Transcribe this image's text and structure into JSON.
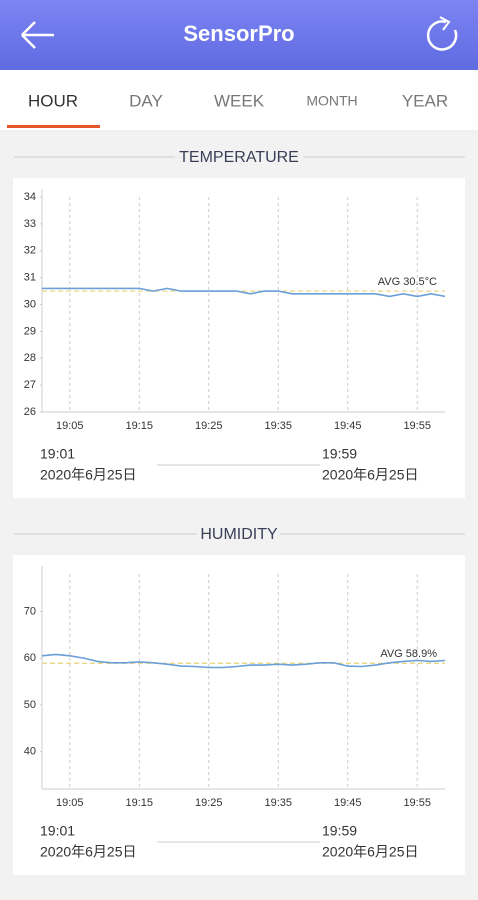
{
  "header": {
    "title": "SensorPro"
  },
  "tabs": [
    "HOUR",
    "DAY",
    "WEEK",
    "MONTH",
    "YEAR"
  ],
  "chart_data": [
    {
      "type": "line",
      "title": "TEMPERATURE",
      "x": [
        "19:01",
        "19:03",
        "19:05",
        "19:07",
        "19:09",
        "19:11",
        "19:13",
        "19:15",
        "19:17",
        "19:19",
        "19:21",
        "19:23",
        "19:25",
        "19:27",
        "19:29",
        "19:31",
        "19:33",
        "19:35",
        "19:37",
        "19:39",
        "19:41",
        "19:43",
        "19:45",
        "19:47",
        "19:49",
        "19:51",
        "19:53",
        "19:55",
        "19:57",
        "19:59"
      ],
      "series": [
        {
          "color": "#6a9fd8",
          "values": [
            30.6,
            30.6,
            30.6,
            30.6,
            30.6,
            30.6,
            30.6,
            30.6,
            30.5,
            30.6,
            30.5,
            30.5,
            30.5,
            30.5,
            30.5,
            30.4,
            30.5,
            30.5,
            30.4,
            30.4,
            30.4,
            30.4,
            30.4,
            30.4,
            30.4,
            30.3,
            30.4,
            30.3,
            30.4,
            30.3
          ]
        }
      ],
      "avg": {
        "value": 30.5,
        "label": "AVG 30.5°C"
      },
      "avg_color": "#e8d27a",
      "xlim": [
        "19:01",
        "19:59"
      ],
      "xticks": [
        "19:05",
        "19:15",
        "19:25",
        "19:35",
        "19:45",
        "19:55"
      ],
      "range_dates": [
        "2020年6月25日",
        "2020年6月25日"
      ],
      "ylim": [
        26,
        34
      ],
      "yticks": [
        26,
        27,
        28,
        29,
        30,
        31,
        32,
        33,
        34
      ],
      "grid": true
    },
    {
      "type": "line",
      "title": "HUMIDITY",
      "x": [
        "19:01",
        "19:03",
        "19:05",
        "19:07",
        "19:09",
        "19:11",
        "19:13",
        "19:15",
        "19:17",
        "19:19",
        "19:21",
        "19:23",
        "19:25",
        "19:27",
        "19:29",
        "19:31",
        "19:33",
        "19:35",
        "19:37",
        "19:39",
        "19:41",
        "19:43",
        "19:45",
        "19:47",
        "19:49",
        "19:51",
        "19:53",
        "19:55",
        "19:57",
        "19:59"
      ],
      "series": [
        {
          "color": "#6a9fd8",
          "values": [
            60.5,
            60.8,
            60.5,
            60,
            59.3,
            59,
            59,
            59.2,
            59,
            58.7,
            58.3,
            58.2,
            58,
            58,
            58.2,
            58.5,
            58.5,
            58.7,
            58.5,
            58.7,
            59,
            59,
            58.3,
            58.2,
            58.5,
            59,
            59.3,
            59.5,
            59.3,
            59.5
          ]
        }
      ],
      "avg": {
        "value": 58.9,
        "label": "AVG 58.9%"
      },
      "avg_color": "#e8d27a",
      "xlim": [
        "19:01",
        "19:59"
      ],
      "xticks": [
        "19:05",
        "19:15",
        "19:25",
        "19:35",
        "19:45",
        "19:55"
      ],
      "range_dates": [
        "2020年6月25日",
        "2020年6月25日"
      ],
      "ylim": [
        32,
        78
      ],
      "yticks": [
        40,
        50,
        60,
        70
      ],
      "grid": true
    }
  ]
}
